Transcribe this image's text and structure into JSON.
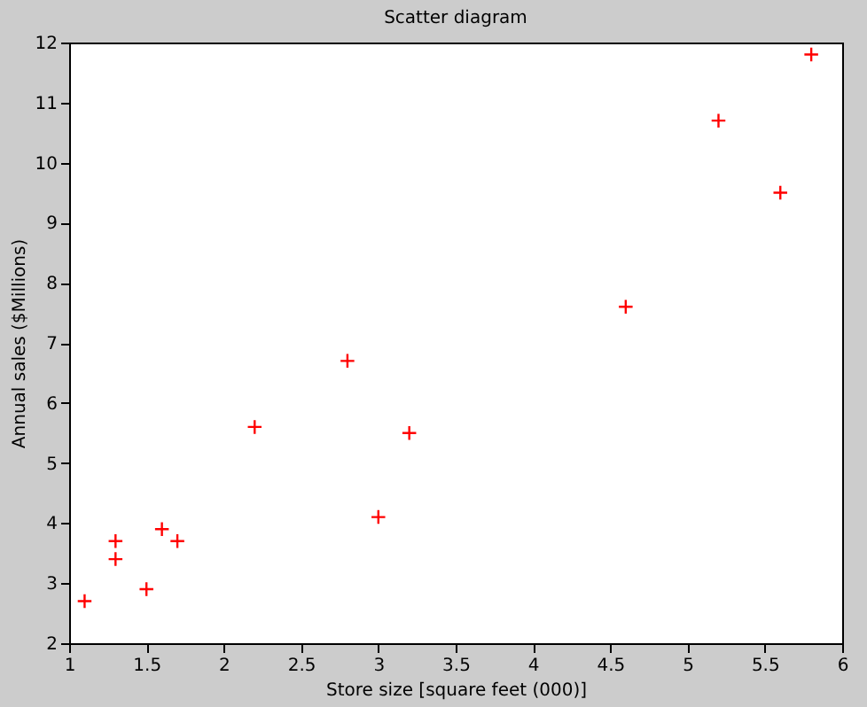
{
  "chart_data": {
    "type": "scatter",
    "title": "Scatter diagram",
    "xlabel": "Store size [square feet (000)]",
    "ylabel": "Annual sales ($Millions)",
    "x": [
      1.1,
      1.3,
      1.3,
      1.5,
      1.6,
      1.7,
      2.2,
      2.8,
      3.0,
      3.2,
      4.6,
      5.2,
      5.6,
      5.8
    ],
    "values": [
      2.7,
      3.4,
      3.7,
      2.9,
      3.9,
      3.7,
      5.6,
      6.7,
      4.1,
      5.5,
      7.6,
      10.7,
      9.5,
      11.8
    ],
    "color": "#ff0000",
    "marker": "cross",
    "xlim": [
      1,
      6
    ],
    "xticks": [
      1,
      1.5,
      2,
      2.5,
      3,
      3.5,
      4,
      4.5,
      5,
      5.5,
      6
    ],
    "ylim": [
      2,
      12
    ],
    "yticks": [
      2,
      3,
      4,
      5,
      6,
      7,
      8,
      9,
      10,
      11,
      12
    ],
    "grid": false
  }
}
